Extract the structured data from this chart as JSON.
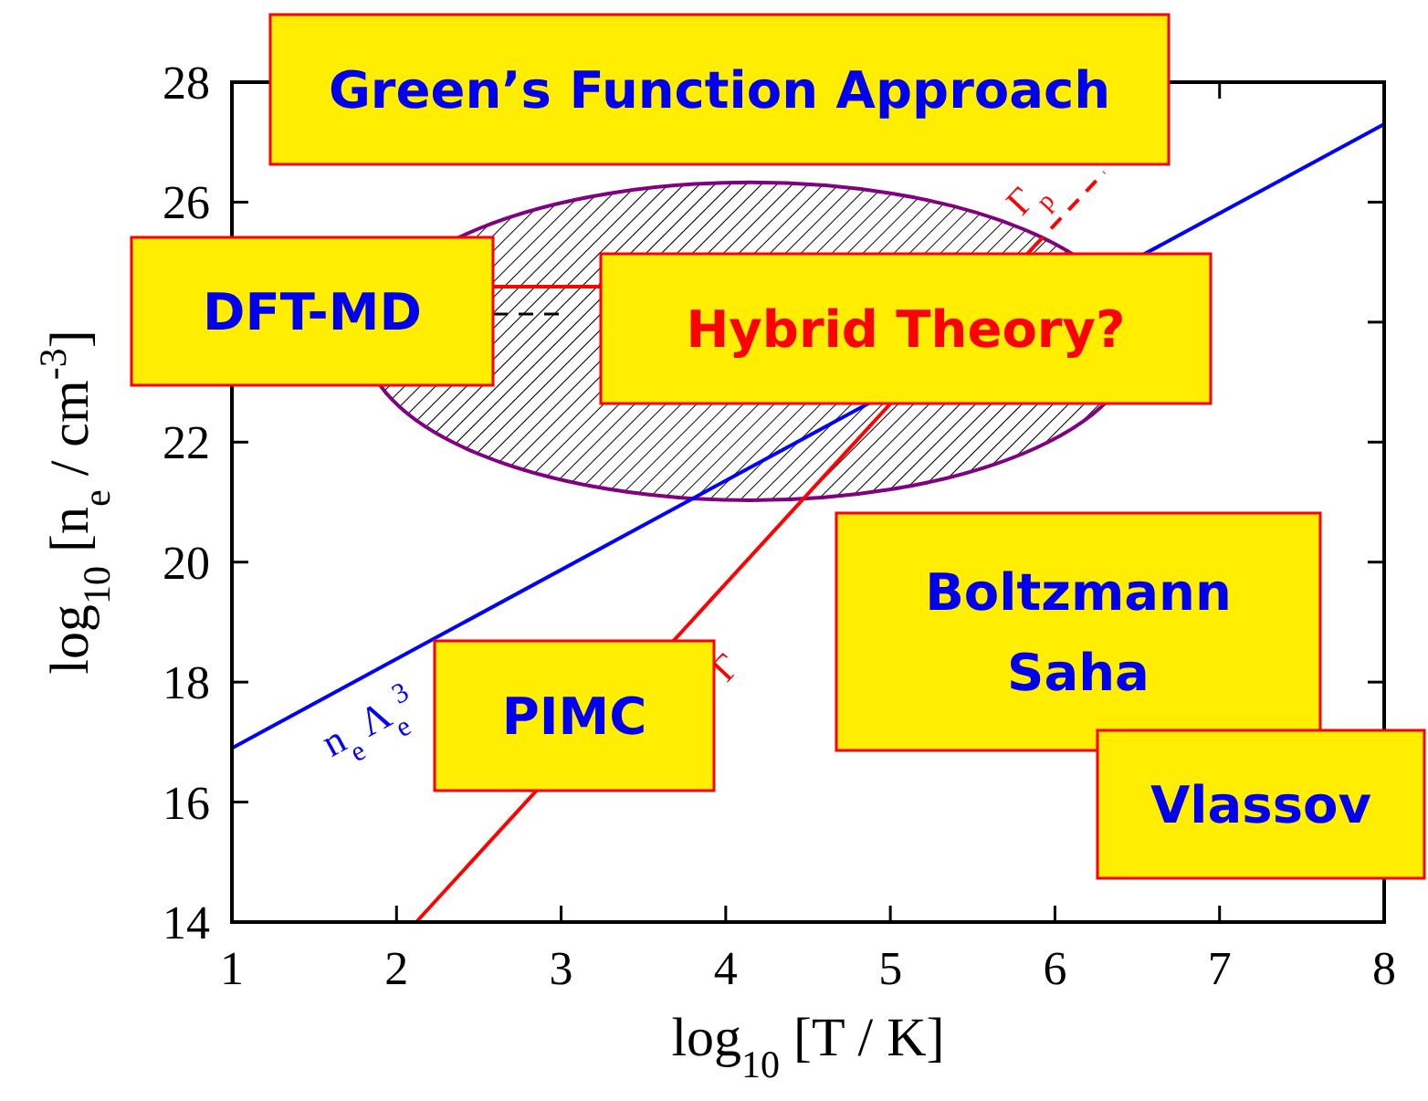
{
  "chart_data": {
    "type": "line",
    "xlabel": "log$_{10}$ [T / K]",
    "ylabel": "log$_{10}$ [n$_{e}$ / cm$^{-3}$]",
    "xlim": [
      1,
      8
    ],
    "ylim": [
      14,
      28
    ],
    "xticks": [
      1,
      2,
      3,
      4,
      5,
      6,
      7,
      8
    ],
    "yticks": [
      14,
      16,
      18,
      20,
      22,
      {
        "value": 24,
        "label": null
      },
      26,
      28
    ],
    "marker": "none",
    "series": [
      {
        "color": "#0000ff",
        "x": [
          1,
          8
        ],
        "values": [
          16.9,
          27.3
        ],
        "line_style": "solid"
      },
      {
        "color": "#ff0000",
        "x": [
          2.12,
          5.87
        ],
        "values": [
          14,
          25.25
        ],
        "line_style": "solid"
      },
      {
        "color": "#ff0000",
        "x": [
          5.87,
          6.3
        ],
        "values": [
          25.25,
          26.5
        ],
        "line_style": "dashed"
      }
    ],
    "annotations": [
      "n$_{e}$ Λ$_{e}$$^{3}$",
      "Γ$_{p}$",
      "Γ",
      "Green’s Function Approach",
      "DFT-MD",
      "Hybrid Theory?",
      "Boltzmann\nSaha",
      "PIMC",
      "Vlassov"
    ]
  }
}
